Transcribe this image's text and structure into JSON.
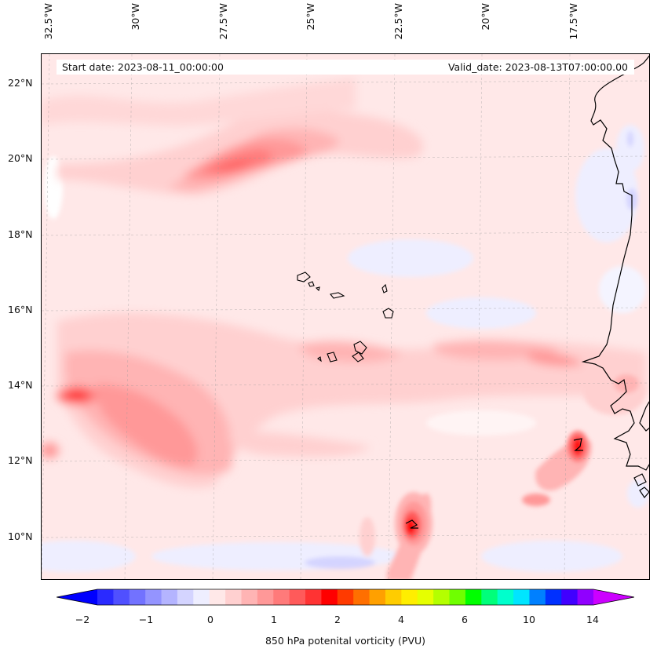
{
  "map": {
    "start_date": "Start date: 2023-08-11_00:00:00",
    "valid_date": "Valid_date: 2023-08-13T07:00:00.00",
    "longitude_labels": [
      "32.5°W",
      "30°W",
      "27.5°W",
      "25°W",
      "22.5°W",
      "20°W",
      "17.5°W"
    ],
    "latitude_labels": [
      "22°N",
      "20°N",
      "18°N",
      "16°N",
      "14°N",
      "12°N",
      "10°N"
    ],
    "features": [
      "pv-contours",
      "coastline-west-africa",
      "cape-verde-islands",
      "graticule"
    ]
  },
  "colorbar": {
    "label": "850 hPa potenital vorticity (PVU)",
    "tick_labels": [
      "−2",
      "−1",
      "0",
      "1",
      "2",
      "4",
      "6",
      "10",
      "14"
    ],
    "extend": "both",
    "colors": [
      "#0000ff",
      "#2a2aff",
      "#5050ff",
      "#7272ff",
      "#9494ff",
      "#b4b4ff",
      "#d4d4ff",
      "#eeeeff",
      "#ffe8e8",
      "#ffd0d0",
      "#ffb4b4",
      "#ff9898",
      "#ff7a7a",
      "#ff5a5a",
      "#ff3333",
      "#ff0000",
      "#ff3a00",
      "#ff6f00",
      "#ffa000",
      "#ffcc00",
      "#ffee00",
      "#e6ff00",
      "#b4ff00",
      "#6fff00",
      "#00ff00",
      "#00ff7a",
      "#00ffcc",
      "#00e5ff",
      "#0080ff",
      "#0030ff",
      "#4000ff",
      "#9000ff",
      "#cc00ff"
    ]
  }
}
